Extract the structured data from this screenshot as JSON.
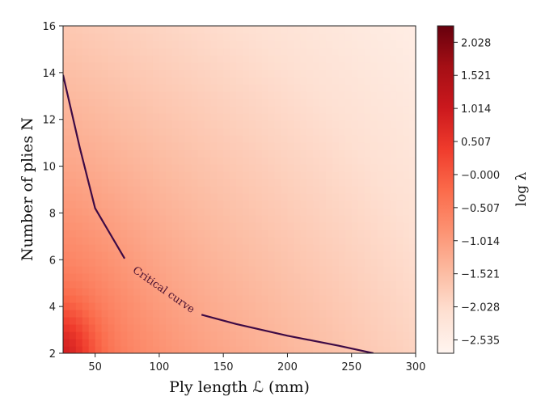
{
  "chart_data": {
    "type": "heatmap",
    "xlabel": "Ply length ℒ (mm)",
    "ylabel": "Number of plies N",
    "xlim": [
      25,
      300
    ],
    "ylim": [
      2,
      16
    ],
    "xticks": [
      50,
      100,
      150,
      200,
      250,
      300
    ],
    "yticks": [
      2,
      4,
      6,
      8,
      10,
      12,
      14,
      16
    ],
    "grid": false,
    "colormap": "Reds",
    "colorbar": {
      "label": "log λ",
      "range": [
        -2.74,
        2.28
      ],
      "tick_values": [
        2.028,
        1.521,
        1.014,
        0.507,
        0.0,
        -0.507,
        -1.014,
        -1.521,
        -2.028,
        -2.535
      ],
      "tick_labels": [
        "2.028",
        "1.521",
        "1.014",
        "0.507",
        "−0.000",
        "−0.507",
        "−1.014",
        "−1.521",
        "−2.028",
        "−2.535"
      ]
    },
    "critical_curve": {
      "label": "Critical curve",
      "label_position": [
        102,
        4.6
      ],
      "segments": [
        [
          [
            25,
            13.9
          ],
          [
            38,
            10.8
          ],
          [
            50,
            8.2
          ],
          [
            73,
            6.05
          ]
        ],
        [
          [
            133,
            3.65
          ],
          [
            160,
            3.25
          ],
          [
            200,
            2.75
          ],
          [
            240,
            2.32
          ],
          [
            267,
            2.0
          ]
        ]
      ]
    },
    "field_samples": {
      "description_units": "log λ sampled at (x mm, N)",
      "points": [
        [
          25,
          2,
          0.55
        ],
        [
          25,
          16,
          -1.0
        ],
        [
          300,
          2,
          -1.7
        ],
        [
          300,
          16,
          -2.65
        ],
        [
          100,
          6,
          -1.1
        ],
        [
          200,
          10,
          -2.2
        ]
      ]
    }
  }
}
